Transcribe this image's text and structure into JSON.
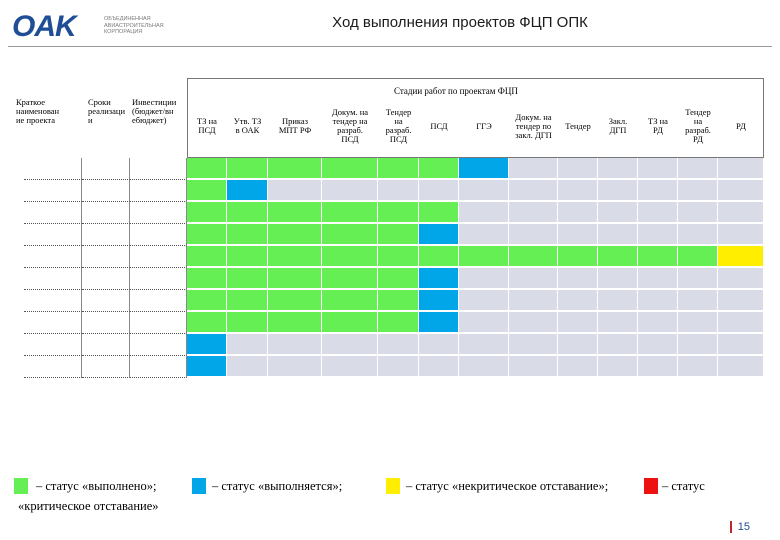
{
  "header": {
    "logo_mark": "OAK",
    "logo_text": "Объединенная авиастроительная корпорация",
    "title": "Ход выполнения проектов ФЦП ОПК"
  },
  "table": {
    "stages_title": "Стадии работ по проектам ФЦП",
    "left_headers": [
      [
        "Краткое",
        "наименован",
        "ие проекта"
      ],
      [
        "Сроки",
        "реализаци",
        "и"
      ],
      [
        "Инвестиции",
        "(бюджет/вн",
        "ебюджет)"
      ]
    ],
    "stage_headers": [
      [
        "ТЗ на",
        "ПСД"
      ],
      [
        "Утв. ТЗ",
        "в ОАК"
      ],
      [
        "Приказ",
        "МПТ РФ"
      ],
      [
        "Докум. на",
        "тендер на",
        "разраб.",
        "ПСД"
      ],
      [
        "Тендер",
        "на",
        "разраб.",
        "ПСД"
      ],
      [
        "ПСД"
      ],
      [
        "ГГЭ"
      ],
      [
        "Докум. на",
        "тендер по",
        "закл. ДГП"
      ],
      [
        "Тендер"
      ],
      [
        "Закл.",
        "ДГП"
      ],
      [
        "ТЗ на",
        "РД"
      ],
      [
        "Тендер",
        "на",
        "разраб.",
        "РД"
      ],
      [
        "РД"
      ]
    ],
    "rows": [
      [
        "g",
        "g",
        "g",
        "g",
        "g",
        "g",
        "b",
        "e",
        "e",
        "e",
        "e",
        "e",
        "e"
      ],
      [
        "g",
        "b",
        "e",
        "e",
        "e",
        "e",
        "e",
        "e",
        "e",
        "e",
        "e",
        "e",
        "e"
      ],
      [
        "g",
        "g",
        "g",
        "g",
        "g",
        "g",
        "e",
        "e",
        "e",
        "e",
        "e",
        "e",
        "e"
      ],
      [
        "g",
        "g",
        "g",
        "g",
        "g",
        "b",
        "e",
        "e",
        "e",
        "e",
        "e",
        "e",
        "e"
      ],
      [
        "g",
        "g",
        "g",
        "g",
        "g",
        "g",
        "g",
        "g",
        "g",
        "g",
        "g",
        "g",
        "y"
      ],
      [
        "g",
        "g",
        "g",
        "g",
        "g",
        "b",
        "e",
        "e",
        "e",
        "e",
        "e",
        "e",
        "e"
      ],
      [
        "g",
        "g",
        "g",
        "g",
        "g",
        "b",
        "e",
        "e",
        "e",
        "e",
        "e",
        "e",
        "e"
      ],
      [
        "g",
        "g",
        "g",
        "g",
        "g",
        "b",
        "e",
        "e",
        "e",
        "e",
        "e",
        "e",
        "e"
      ],
      [
        "b",
        "e",
        "e",
        "e",
        "e",
        "e",
        "e",
        "e",
        "e",
        "e",
        "e",
        "e",
        "e"
      ],
      [
        "b",
        "e",
        "e",
        "e",
        "e",
        "e",
        "e",
        "e",
        "e",
        "e",
        "e",
        "e",
        "e"
      ]
    ],
    "colors": {
      "done": "#66ee55",
      "in_progress": "#00a6e8",
      "noncritical": "#ffee00",
      "critical": "#ee1111",
      "empty": "#d9dce6"
    }
  },
  "legend": {
    "done": "– статус «выполнено»;",
    "in_progress": "– статус «выполняется»;",
    "noncritical": "– статус «некритическое отставание»;",
    "critical_1": "– статус",
    "critical_2": "«критическое отставание»"
  },
  "page_number": "15"
}
